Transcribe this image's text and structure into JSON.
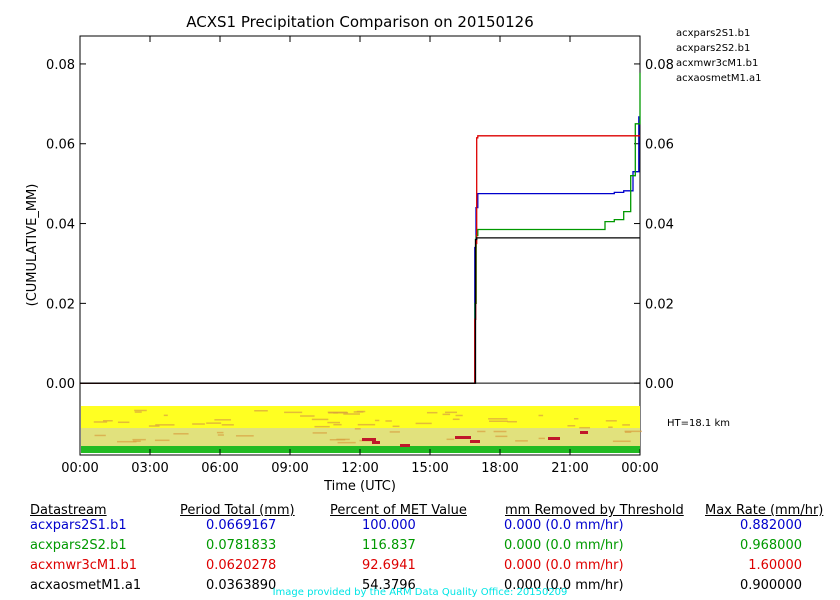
{
  "chart_data": {
    "type": "line",
    "title": "ACXS1 Precipitation Comparison on 20150126",
    "xlabel": "Time (UTC)",
    "ylabel": "(CUMULATIVE_MM)",
    "xlim": [
      0,
      24
    ],
    "ylim": [
      -0.018,
      0.087
    ],
    "x_ticks": [
      "00:00",
      "03:00",
      "06:00",
      "09:00",
      "12:00",
      "15:00",
      "18:00",
      "21:00",
      "00:00"
    ],
    "y_ticks": [
      "0.00",
      "0.02",
      "0.04",
      "0.06",
      "0.08"
    ],
    "legend_position": "top-right outside",
    "annotation": "HT=18.1 km",
    "series": [
      {
        "name": "acxpars2S1.b1",
        "color": "#0000cc",
        "points": [
          [
            0,
            0
          ],
          [
            16.9,
            0
          ],
          [
            16.92,
            0.034
          ],
          [
            16.97,
            0.044
          ],
          [
            17.05,
            0.0475
          ],
          [
            22.9,
            0.0478
          ],
          [
            23.3,
            0.0482
          ],
          [
            23.7,
            0.053
          ],
          [
            23.95,
            0.0669
          ]
        ]
      },
      {
        "name": "acxpars2S2.b1",
        "color": "#009900",
        "points": [
          [
            0,
            0
          ],
          [
            16.9,
            0
          ],
          [
            16.93,
            0.02
          ],
          [
            16.98,
            0.037
          ],
          [
            17.05,
            0.0385
          ],
          [
            22.4,
            0.0385
          ],
          [
            22.5,
            0.0405
          ],
          [
            22.9,
            0.041
          ],
          [
            23.3,
            0.043
          ],
          [
            23.6,
            0.052
          ],
          [
            23.8,
            0.065
          ],
          [
            24,
            0.0778
          ]
        ]
      },
      {
        "name": "acxmwr3cM1.b1",
        "color": "#dd0000",
        "points": [
          [
            0,
            0
          ],
          [
            16.9,
            0
          ],
          [
            16.92,
            0.016
          ],
          [
            16.96,
            0.035
          ],
          [
            17.0,
            0.0615
          ],
          [
            17.05,
            0.062
          ],
          [
            23.8,
            0.062
          ],
          [
            24,
            0.062
          ]
        ]
      },
      {
        "name": "acxaosmetM1.a1",
        "color": "#000000",
        "points": [
          [
            0,
            0
          ],
          [
            16.92,
            0
          ],
          [
            16.95,
            0.036
          ],
          [
            17.0,
            0.0364
          ],
          [
            24,
            0.0364
          ]
        ]
      }
    ]
  },
  "table": {
    "headers": [
      "Datastream",
      "Period Total (mm)",
      "Percent of MET Value",
      "mm Removed by Threshold",
      "Max Rate (mm/hr)"
    ],
    "rows": [
      {
        "name": "acxpars2S1.b1",
        "total": "0.0669167",
        "percent": "100.000",
        "removed": "0.000 (0.0 mm/hr)",
        "max": "0.882000",
        "color": "#0000cc"
      },
      {
        "name": "acxpars2S2.b1",
        "total": "0.0781833",
        "percent": "116.837",
        "removed": "0.000 (0.0 mm/hr)",
        "max": "0.968000",
        "color": "#009900"
      },
      {
        "name": "acxmwr3cM1.b1",
        "total": "0.0620278",
        "percent": "92.6941",
        "removed": "0.000 (0.0 mm/hr)",
        "max": "1.60000",
        "color": "#dd0000"
      },
      {
        "name": "acxaosmetM1.a1",
        "total": "0.0363890",
        "percent": "54.3796",
        "removed": "0.000 (0.0 mm/hr)",
        "max": "0.900000",
        "color": "#000000"
      }
    ]
  },
  "credit": "Image provided by the ARM Data Quality Office: 20150209"
}
